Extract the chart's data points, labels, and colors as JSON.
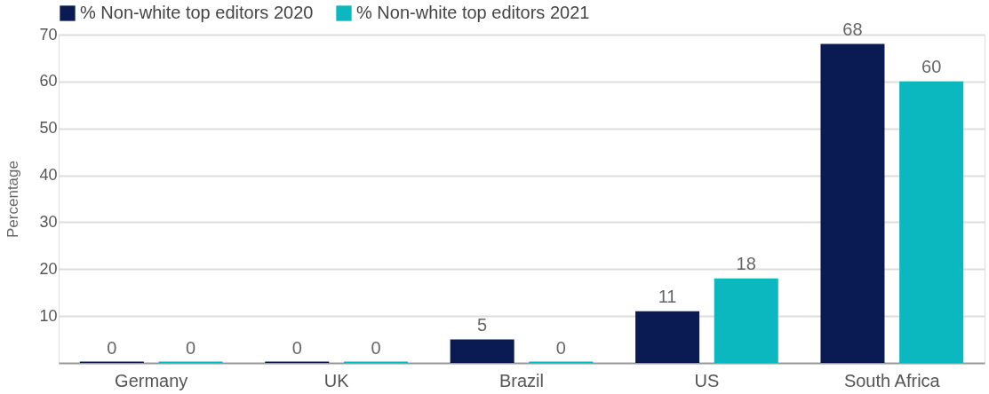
{
  "chart_data": {
    "type": "bar",
    "ylabel": "Percentage",
    "categories": [
      "Germany",
      "UK",
      "Brazil",
      "US",
      "South Africa"
    ],
    "series": [
      {
        "name": "% Non-white top editors 2020",
        "color": "#0a1a52",
        "values": [
          0,
          0,
          5,
          11,
          68
        ]
      },
      {
        "name": "% Non-white top editors 2021",
        "color": "#0bb8bf",
        "values": [
          0,
          0,
          0,
          18,
          60
        ]
      }
    ],
    "ylim": [
      0,
      70
    ],
    "yticks": [
      10,
      20,
      30,
      40,
      50,
      60,
      70
    ],
    "grid": "y",
    "legend": "top left",
    "data_labels": true
  }
}
